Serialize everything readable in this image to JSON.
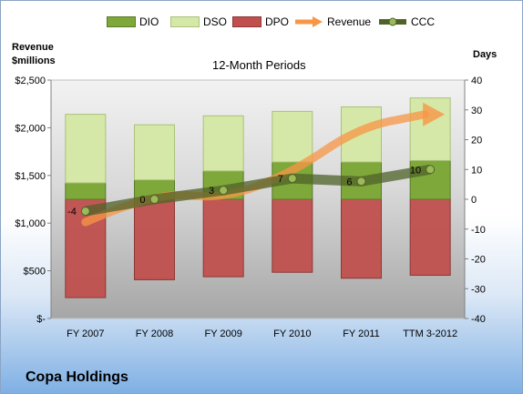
{
  "chart_data": {
    "type": "bar",
    "subtitle": "12-Month Periods",
    "company": "Copa Holdings",
    "ylabel_left_line1": "Revenue",
    "ylabel_left_line2": "$millions",
    "ylabel_right": "Days",
    "ylim_left": [
      0,
      2500
    ],
    "ylim_right": [
      -40,
      40
    ],
    "left_ticks": [
      "$-",
      "$500",
      "$1,000",
      "$1,500",
      "$2,000",
      "$2,500"
    ],
    "left_tick_values": [
      0,
      500,
      1000,
      1500,
      2000,
      2500
    ],
    "right_ticks": [
      "-40",
      "-30",
      "-20",
      "-10",
      "0",
      "10",
      "20",
      "30",
      "40"
    ],
    "right_tick_values": [
      -40,
      -30,
      -20,
      -10,
      0,
      10,
      20,
      30,
      40
    ],
    "categories": [
      "FY 2007",
      "FY 2008",
      "FY 2009",
      "FY 2010",
      "FY 2011",
      "TTM 3-2012"
    ],
    "series": [
      {
        "name": "DIO",
        "axis": "right",
        "color": "#7fa83a",
        "values": [
          5.5,
          6.5,
          9.5,
          12.5,
          12.5,
          13
        ]
      },
      {
        "name": "DSO",
        "axis": "right",
        "color": "#d6e8a8",
        "values": [
          23,
          18.5,
          18.5,
          17,
          18.5,
          21
        ]
      },
      {
        "name": "DPO",
        "axis": "right",
        "color": "#c0504d",
        "values": [
          -33,
          -27,
          -26,
          -24.5,
          -26.5,
          -25.5
        ]
      },
      {
        "name": "Revenue",
        "axis": "left",
        "color": "#f79646",
        "values": [
          1010,
          1330,
          1250,
          1530,
          2020,
          2140
        ]
      },
      {
        "name": "CCC",
        "axis": "right",
        "color": "#4f6228",
        "values": [
          -4,
          0,
          3,
          7,
          6,
          10
        ]
      }
    ],
    "ccc_labels": [
      "-4",
      "0",
      "3",
      "7",
      "6",
      "10"
    ],
    "legend_position": "top"
  }
}
